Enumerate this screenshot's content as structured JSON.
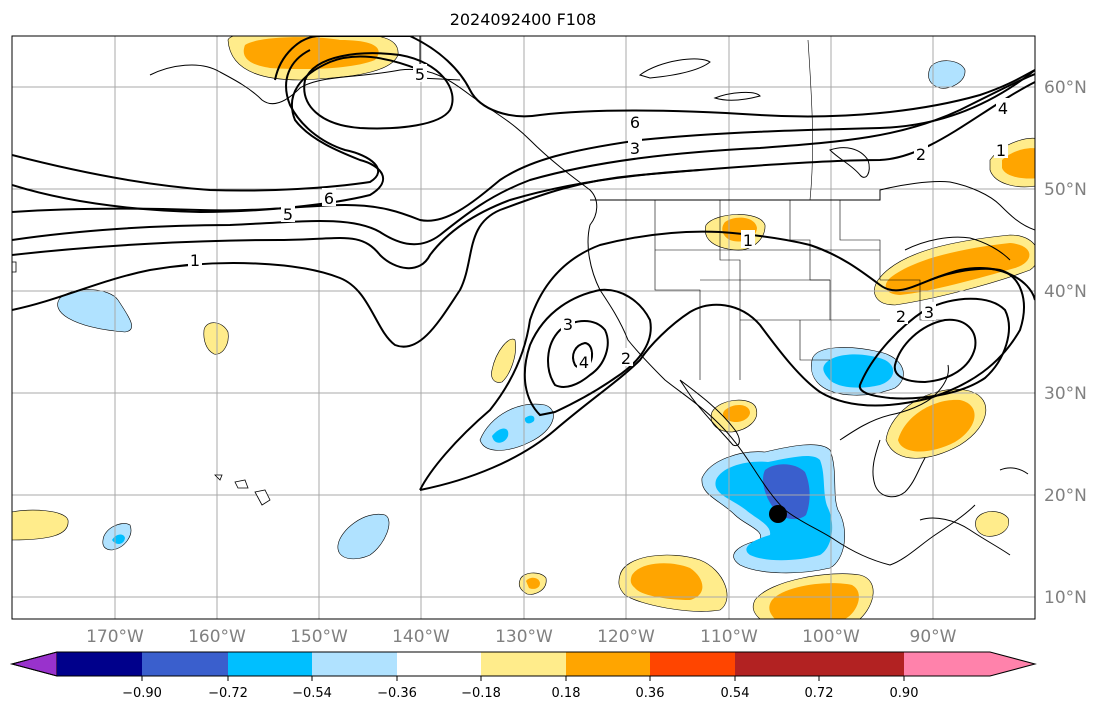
{
  "title": "2024092400 F108",
  "longitude_labels": [
    "170°W",
    "160°W",
    "150°W",
    "140°W",
    "130°W",
    "120°W",
    "110°W",
    "100°W",
    "90°W"
  ],
  "latitude_labels": [
    "60°N",
    "50°N",
    "40°N",
    "30°N",
    "20°N",
    "10°N"
  ],
  "contour_labels": [
    "5",
    "6",
    "3",
    "6",
    "5",
    "1",
    "4",
    "2",
    "1",
    "1",
    "3",
    "4",
    "2",
    "2",
    "3"
  ],
  "colorbar": {
    "ticks": [
      "−0.90",
      "−0.72",
      "−0.54",
      "−0.36",
      "−0.18",
      "0.18",
      "0.36",
      "0.54",
      "0.72",
      "0.90"
    ],
    "colors": [
      "#9932cc",
      "#00008b",
      "#3a5fcd",
      "#00bfff",
      "#b0e2ff",
      "#ffffff",
      "#ffec8b",
      "#ffa500",
      "#ff4500",
      "#b22222",
      "#ff82ab"
    ]
  },
  "marker": "dot"
}
